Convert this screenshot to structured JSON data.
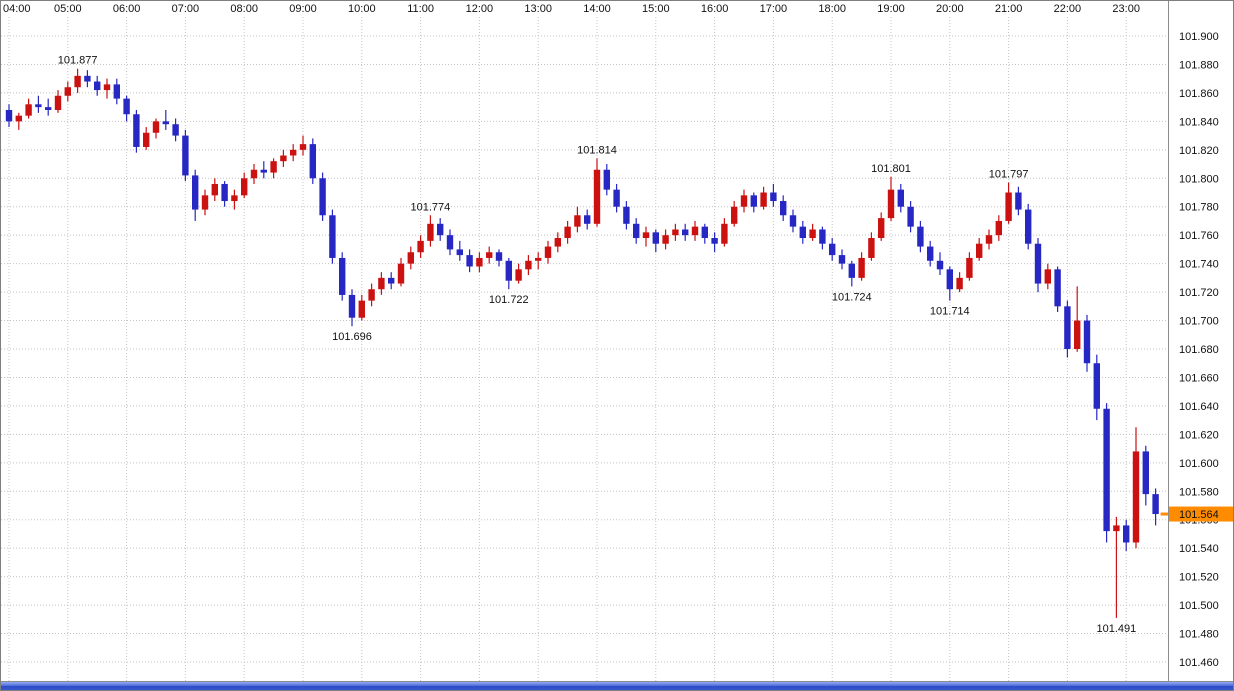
{
  "window": {
    "background": "#ffffff",
    "border_color": "#7f7f7f"
  },
  "colors": {
    "up": "#cc1111",
    "down": "#2727c4",
    "grid": "#c4c4c4",
    "axis_text": "#111111",
    "axis_separator": "#8c8c8c",
    "high_label": "#cc7a00",
    "low_label": "#00a03c",
    "badge_bg": "#ff8c00",
    "badge_text": "#ffffff",
    "scrollbar": "#3a57cf"
  },
  "axes": {
    "time_ticks": [
      "04:00",
      "05:00",
      "06:00",
      "07:00",
      "08:00",
      "09:00",
      "10:00",
      "11:00",
      "12:00",
      "13:00",
      "14:00",
      "15:00",
      "16:00",
      "17:00",
      "18:00",
      "19:00",
      "20:00",
      "21:00",
      "22:00",
      "23:00"
    ],
    "price_ticks": [
      "101.900",
      "101.880",
      "101.860",
      "101.840",
      "101.820",
      "101.800",
      "101.780",
      "101.760",
      "101.740",
      "101.720",
      "101.700",
      "101.680",
      "101.660",
      "101.640",
      "101.620",
      "101.600",
      "101.580",
      "101.560",
      "101.540",
      "101.520",
      "101.500",
      "101.480",
      "101.460"
    ],
    "price_max": 101.9,
    "price_min": 101.46,
    "price_step": 0.02
  },
  "current_price": {
    "value": "101.564",
    "numeric": 101.564
  },
  "annotations": [
    {
      "text": "101.877",
      "type": "high",
      "candle_index": 7
    },
    {
      "text": "101.696",
      "type": "low",
      "candle_index": 35
    },
    {
      "text": "101.774",
      "type": "high",
      "candle_index": 43
    },
    {
      "text": "101.722",
      "type": "low",
      "candle_index": 51
    },
    {
      "text": "101.814",
      "type": "high",
      "candle_index": 60
    },
    {
      "text": "101.724",
      "type": "low",
      "candle_index": 86
    },
    {
      "text": "101.801",
      "type": "high",
      "candle_index": 90
    },
    {
      "text": "101.714",
      "type": "low",
      "candle_index": 96
    },
    {
      "text": "101.797",
      "type": "high",
      "candle_index": 102
    },
    {
      "text": "101.491",
      "type": "low",
      "candle_index": 113
    }
  ],
  "chart_data": {
    "type": "candlestick",
    "time_start": "04:00",
    "interval_minutes": 10,
    "xlabel": "time",
    "ylabel": "price",
    "ylim": [
      101.46,
      101.9
    ],
    "grid": true,
    "legend": "none",
    "last_close": 101.564,
    "session_high": 101.877,
    "session_low": 101.491,
    "candles": [
      [
        101.848,
        101.852,
        101.836,
        101.84
      ],
      [
        101.84,
        101.846,
        101.834,
        101.844
      ],
      [
        101.844,
        101.856,
        101.842,
        101.852
      ],
      [
        101.852,
        101.858,
        101.846,
        101.85
      ],
      [
        101.85,
        101.856,
        101.844,
        101.848
      ],
      [
        101.848,
        101.862,
        101.846,
        101.858
      ],
      [
        101.858,
        101.868,
        101.854,
        101.864
      ],
      [
        101.864,
        101.877,
        101.86,
        101.872
      ],
      [
        101.872,
        101.876,
        101.864,
        101.868
      ],
      [
        101.868,
        101.872,
        101.858,
        101.862
      ],
      [
        101.862,
        101.87,
        101.856,
        101.866
      ],
      [
        101.866,
        101.87,
        101.852,
        101.856
      ],
      [
        101.856,
        101.858,
        101.84,
        101.845
      ],
      [
        101.845,
        101.848,
        101.818,
        101.822
      ],
      [
        101.822,
        101.836,
        101.82,
        101.832
      ],
      [
        101.832,
        101.842,
        101.828,
        101.84
      ],
      [
        101.84,
        101.848,
        101.834,
        101.838
      ],
      [
        101.838,
        101.842,
        101.826,
        101.83
      ],
      [
        101.83,
        101.834,
        101.798,
        101.802
      ],
      [
        101.802,
        101.806,
        101.77,
        101.778
      ],
      [
        101.778,
        101.792,
        101.774,
        101.788
      ],
      [
        101.788,
        101.8,
        101.784,
        101.796
      ],
      [
        101.796,
        101.798,
        101.78,
        101.784
      ],
      [
        101.784,
        101.792,
        101.778,
        101.788
      ],
      [
        101.788,
        101.804,
        101.786,
        101.8
      ],
      [
        101.8,
        101.81,
        101.796,
        101.806
      ],
      [
        101.806,
        101.812,
        101.8,
        101.804
      ],
      [
        101.804,
        101.814,
        101.8,
        101.812
      ],
      [
        101.812,
        101.82,
        101.808,
        101.816
      ],
      [
        101.816,
        101.824,
        101.812,
        101.82
      ],
      [
        101.82,
        101.83,
        101.816,
        101.824
      ],
      [
        101.824,
        101.828,
        101.796,
        101.8
      ],
      [
        101.8,
        101.804,
        101.77,
        101.774
      ],
      [
        101.774,
        101.778,
        101.74,
        101.744
      ],
      [
        101.744,
        101.748,
        101.714,
        101.718
      ],
      [
        101.718,
        101.722,
        101.696,
        101.702
      ],
      [
        101.702,
        101.718,
        101.7,
        101.714
      ],
      [
        101.714,
        101.726,
        101.71,
        101.722
      ],
      [
        101.722,
        101.734,
        101.718,
        101.73
      ],
      [
        101.73,
        101.734,
        101.722,
        101.726
      ],
      [
        101.726,
        101.744,
        101.724,
        101.74
      ],
      [
        101.74,
        101.752,
        101.736,
        101.748
      ],
      [
        101.748,
        101.76,
        101.744,
        101.756
      ],
      [
        101.756,
        101.774,
        101.752,
        101.768
      ],
      [
        101.768,
        101.772,
        101.756,
        101.76
      ],
      [
        101.76,
        101.764,
        101.746,
        101.75
      ],
      [
        101.75,
        101.756,
        101.742,
        101.746
      ],
      [
        101.746,
        101.75,
        101.734,
        101.738
      ],
      [
        101.738,
        101.748,
        101.734,
        101.744
      ],
      [
        101.744,
        101.752,
        101.74,
        101.748
      ],
      [
        101.748,
        101.75,
        101.738,
        101.742
      ],
      [
        101.742,
        101.744,
        101.722,
        101.728
      ],
      [
        101.728,
        101.74,
        101.726,
        101.736
      ],
      [
        101.736,
        101.746,
        101.732,
        101.742
      ],
      [
        101.742,
        101.748,
        101.736,
        101.744
      ],
      [
        101.744,
        101.756,
        101.74,
        101.752
      ],
      [
        101.752,
        101.762,
        101.748,
        101.758
      ],
      [
        101.758,
        101.77,
        101.754,
        101.766
      ],
      [
        101.766,
        101.78,
        101.762,
        101.774
      ],
      [
        101.774,
        101.778,
        101.764,
        101.768
      ],
      [
        101.768,
        101.814,
        101.766,
        101.806
      ],
      [
        101.806,
        101.81,
        101.788,
        101.792
      ],
      [
        101.792,
        101.796,
        101.776,
        101.78
      ],
      [
        101.78,
        101.784,
        101.764,
        101.768
      ],
      [
        101.768,
        101.772,
        101.754,
        101.758
      ],
      [
        101.758,
        101.766,
        101.752,
        101.762
      ],
      [
        101.762,
        101.764,
        101.748,
        101.754
      ],
      [
        101.754,
        101.764,
        101.75,
        101.76
      ],
      [
        101.76,
        101.768,
        101.756,
        101.764
      ],
      [
        101.764,
        101.768,
        101.756,
        101.76
      ],
      [
        101.76,
        101.77,
        101.756,
        101.766
      ],
      [
        101.766,
        101.768,
        101.754,
        101.758
      ],
      [
        101.758,
        101.762,
        101.748,
        101.754
      ],
      [
        101.754,
        101.772,
        101.752,
        101.768
      ],
      [
        101.768,
        101.784,
        101.766,
        101.78
      ],
      [
        101.78,
        101.792,
        101.776,
        101.788
      ],
      [
        101.788,
        101.79,
        101.776,
        101.78
      ],
      [
        101.78,
        101.794,
        101.778,
        101.79
      ],
      [
        101.79,
        101.796,
        101.78,
        101.784
      ],
      [
        101.784,
        101.788,
        101.77,
        101.774
      ],
      [
        101.774,
        101.778,
        101.762,
        101.766
      ],
      [
        101.766,
        101.77,
        101.754,
        101.758
      ],
      [
        101.758,
        101.768,
        101.756,
        101.764
      ],
      [
        101.764,
        101.766,
        101.75,
        101.754
      ],
      [
        101.754,
        101.758,
        101.742,
        101.746
      ],
      [
        101.746,
        101.75,
        101.736,
        101.74
      ],
      [
        101.74,
        101.742,
        101.724,
        101.73
      ],
      [
        101.73,
        101.748,
        101.728,
        101.744
      ],
      [
        101.744,
        101.762,
        101.742,
        101.758
      ],
      [
        101.758,
        101.776,
        101.756,
        101.772
      ],
      [
        101.772,
        101.801,
        101.77,
        101.792
      ],
      [
        101.792,
        101.796,
        101.776,
        101.78
      ],
      [
        101.78,
        101.784,
        101.762,
        101.766
      ],
      [
        101.766,
        101.77,
        101.748,
        101.752
      ],
      [
        101.752,
        101.756,
        101.738,
        101.742
      ],
      [
        101.742,
        101.748,
        101.732,
        101.736
      ],
      [
        101.736,
        101.738,
        101.714,
        101.722
      ],
      [
        101.722,
        101.734,
        101.72,
        101.73
      ],
      [
        101.73,
        101.748,
        101.728,
        101.744
      ],
      [
        101.744,
        101.758,
        101.742,
        101.754
      ],
      [
        101.754,
        101.764,
        101.75,
        101.76
      ],
      [
        101.76,
        101.774,
        101.756,
        101.77
      ],
      [
        101.77,
        101.797,
        101.768,
        101.79
      ],
      [
        101.79,
        101.794,
        101.774,
        101.778
      ],
      [
        101.778,
        101.782,
        101.75,
        101.754
      ],
      [
        101.754,
        101.758,
        101.72,
        101.726
      ],
      [
        101.726,
        101.74,
        101.722,
        101.736
      ],
      [
        101.736,
        101.738,
        101.706,
        101.71
      ],
      [
        101.71,
        101.714,
        101.674,
        101.68
      ],
      [
        101.68,
        101.724,
        101.678,
        101.7
      ],
      [
        101.7,
        101.704,
        101.664,
        101.67
      ],
      [
        101.67,
        101.676,
        101.63,
        101.638
      ],
      [
        101.638,
        101.642,
        101.544,
        101.552
      ],
      [
        101.552,
        101.562,
        101.491,
        101.556
      ],
      [
        101.556,
        101.56,
        101.538,
        101.544
      ],
      [
        101.544,
        101.625,
        101.54,
        101.608
      ],
      [
        101.608,
        101.612,
        101.57,
        101.578
      ],
      [
        101.578,
        101.582,
        101.556,
        101.564
      ]
    ]
  }
}
